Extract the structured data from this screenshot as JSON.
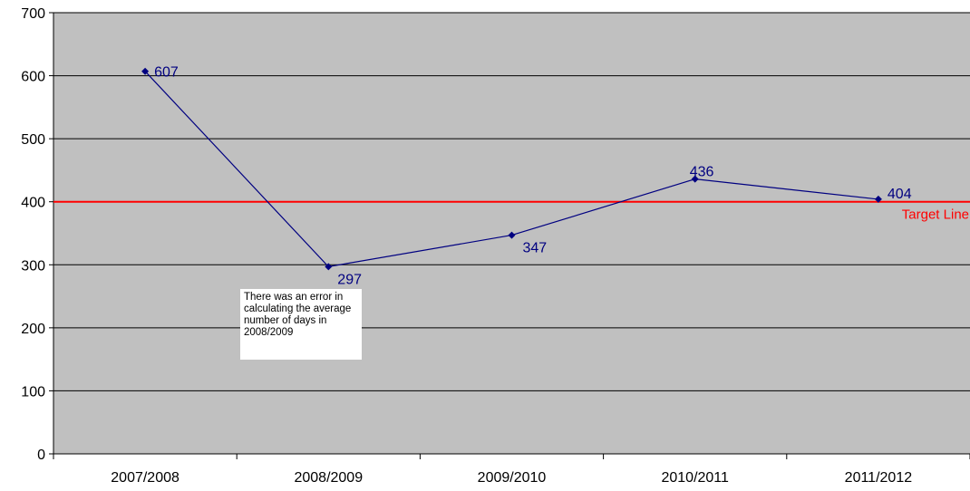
{
  "chart_data": {
    "type": "line",
    "categories": [
      "2007/2008",
      "2008/2009",
      "2009/2010",
      "2010/2011",
      "2011/2012"
    ],
    "series": [
      {
        "values": [
          607,
          297,
          347,
          436,
          404
        ],
        "color": "#000080"
      }
    ],
    "data_labels": [
      "607",
      "297",
      "347",
      "436",
      "404"
    ],
    "target_line": {
      "value": 400,
      "label": "Target Line",
      "color": "#ff0000"
    },
    "ylim": [
      0,
      700
    ],
    "yticks": [
      0,
      100,
      200,
      300,
      400,
      500,
      600,
      700
    ],
    "ytick_labels": [
      "0",
      "100",
      "200",
      "300",
      "400",
      "500",
      "600",
      "700"
    ],
    "grid": true,
    "plot_background": "#c0c0c0",
    "annotation": "There was an error in calculating the average number of days in 2008/2009",
    "xlabel": "",
    "ylabel": ""
  }
}
